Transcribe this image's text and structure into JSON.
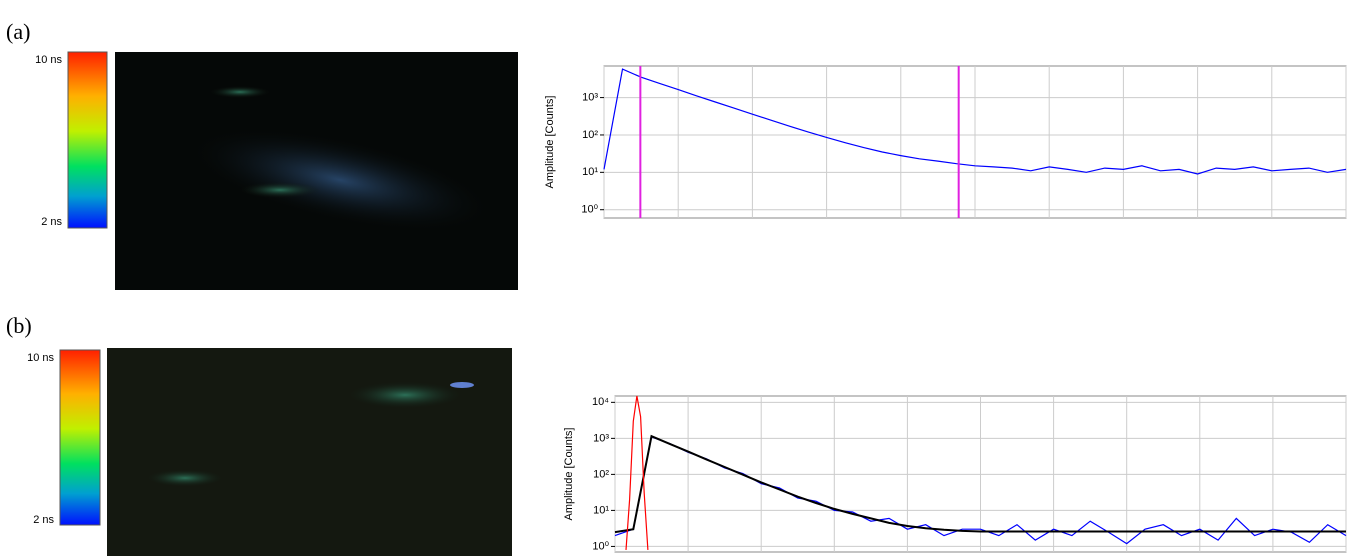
{
  "panels": [
    {
      "label": "(a)",
      "colorbar": [
        "10 ns",
        "2 ns"
      ]
    },
    {
      "label": "(b)",
      "colorbar": [
        "10 ns",
        "2 ns"
      ]
    }
  ],
  "chart_data": [
    {
      "type": "line",
      "ylabel": "Amplitude [Counts]",
      "ylog": true,
      "grid": true,
      "x": [
        0,
        0.25,
        0.5,
        0.75,
        1,
        1.25,
        1.5,
        1.75,
        2,
        2.25,
        2.5,
        2.75,
        3,
        3.25,
        3.5,
        3.75,
        4,
        4.25,
        4.5,
        4.75,
        5,
        5.25,
        5.5,
        5.75,
        6,
        6.25,
        6.5,
        6.75,
        7,
        7.25,
        7.5,
        7.75,
        8,
        8.25,
        8.5,
        8.75,
        9,
        9.25,
        9.5,
        9.75,
        10
      ],
      "xlim": [
        0,
        10
      ],
      "xticks": [
        0,
        1,
        2,
        3,
        4,
        5,
        6,
        7,
        8,
        9,
        10
      ],
      "ylim": [
        0.6,
        7000
      ],
      "yticks": [
        {
          "value": 1,
          "label": "10⁰"
        },
        {
          "value": 10,
          "label": "10¹"
        },
        {
          "value": 100,
          "label": "10²"
        },
        {
          "value": 1000,
          "label": "10³"
        }
      ],
      "markers": [
        {
          "x": 0.49,
          "color": "#e020e0"
        },
        {
          "x": 4.78,
          "color": "#e020e0"
        }
      ],
      "series": [
        {
          "color": "#0000ff",
          "values": [
            12,
            5800,
            3512,
            2392,
            1632,
            1112,
            762,
            522,
            359,
            248,
            172,
            121,
            86,
            62,
            46,
            35,
            28,
            23,
            20,
            17,
            15,
            14,
            13,
            11,
            14,
            12,
            10,
            13,
            12,
            15,
            11,
            12,
            9,
            13,
            12,
            14,
            11,
            12,
            13,
            10,
            12
          ]
        }
      ]
    },
    {
      "type": "line",
      "ylabel": "Amplitude [Counts]",
      "ylog": true,
      "grid": true,
      "x": [
        0,
        0.25,
        0.5,
        0.75,
        1,
        1.25,
        1.5,
        1.75,
        2,
        2.25,
        2.5,
        2.75,
        3,
        3.25,
        3.5,
        3.75,
        4,
        4.25,
        4.5,
        4.75,
        5,
        5.25,
        5.5,
        5.75,
        6,
        6.25,
        6.5,
        6.75,
        7,
        7.25,
        7.5,
        7.75,
        8,
        8.25,
        8.5,
        8.75,
        9,
        9.25,
        9.5,
        9.75,
        10
      ],
      "xlim": [
        0,
        10
      ],
      "xticks": [
        0,
        1,
        2,
        3,
        4,
        5,
        6,
        7,
        8,
        9,
        10
      ],
      "ylim": [
        0.7,
        15000
      ],
      "yticks": [
        {
          "value": 1,
          "label": "10⁰"
        },
        {
          "value": 10,
          "label": "10¹"
        },
        {
          "value": 100,
          "label": "10²"
        },
        {
          "value": 1000,
          "label": "10³"
        },
        {
          "value": 10000,
          "label": "10⁴"
        }
      ],
      "series": [
        {
          "color": "#0000ff",
          "values": [
            2,
            3,
            1100,
            720,
            410,
            270,
            150,
            105,
            55,
            42,
            22,
            18,
            10,
            9,
            5,
            6,
            3,
            4,
            2,
            3,
            3,
            2,
            4,
            1.5,
            3,
            2,
            5,
            2.5,
            1.2,
            3,
            4,
            2,
            3,
            1.5,
            6,
            2,
            3,
            2.5,
            1.3,
            4,
            2
          ]
        },
        {
          "color": "#000000",
          "values": [
            2.5,
            3,
            1150,
            702,
            428,
            260,
            160,
            98,
            60,
            38,
            24,
            16,
            11,
            8,
            6,
            4.5,
            3.7,
            3.2,
            2.9,
            2.7,
            2.6,
            2.6,
            2.6,
            2.6,
            2.6,
            2.6,
            2.6,
            2.6,
            2.6,
            2.6,
            2.6,
            2.6,
            2.6,
            2.6,
            2.6,
            2.6,
            2.6,
            2.6,
            2.6,
            2.6,
            2.6
          ]
        },
        {
          "color": "#ff0000",
          "x": [
            0.15,
            0.2,
            0.25,
            0.3,
            0.35,
            0.4,
            0.45
          ],
          "values": [
            0.8,
            20,
            3000,
            15000,
            4000,
            30,
            0.8
          ]
        }
      ]
    }
  ]
}
